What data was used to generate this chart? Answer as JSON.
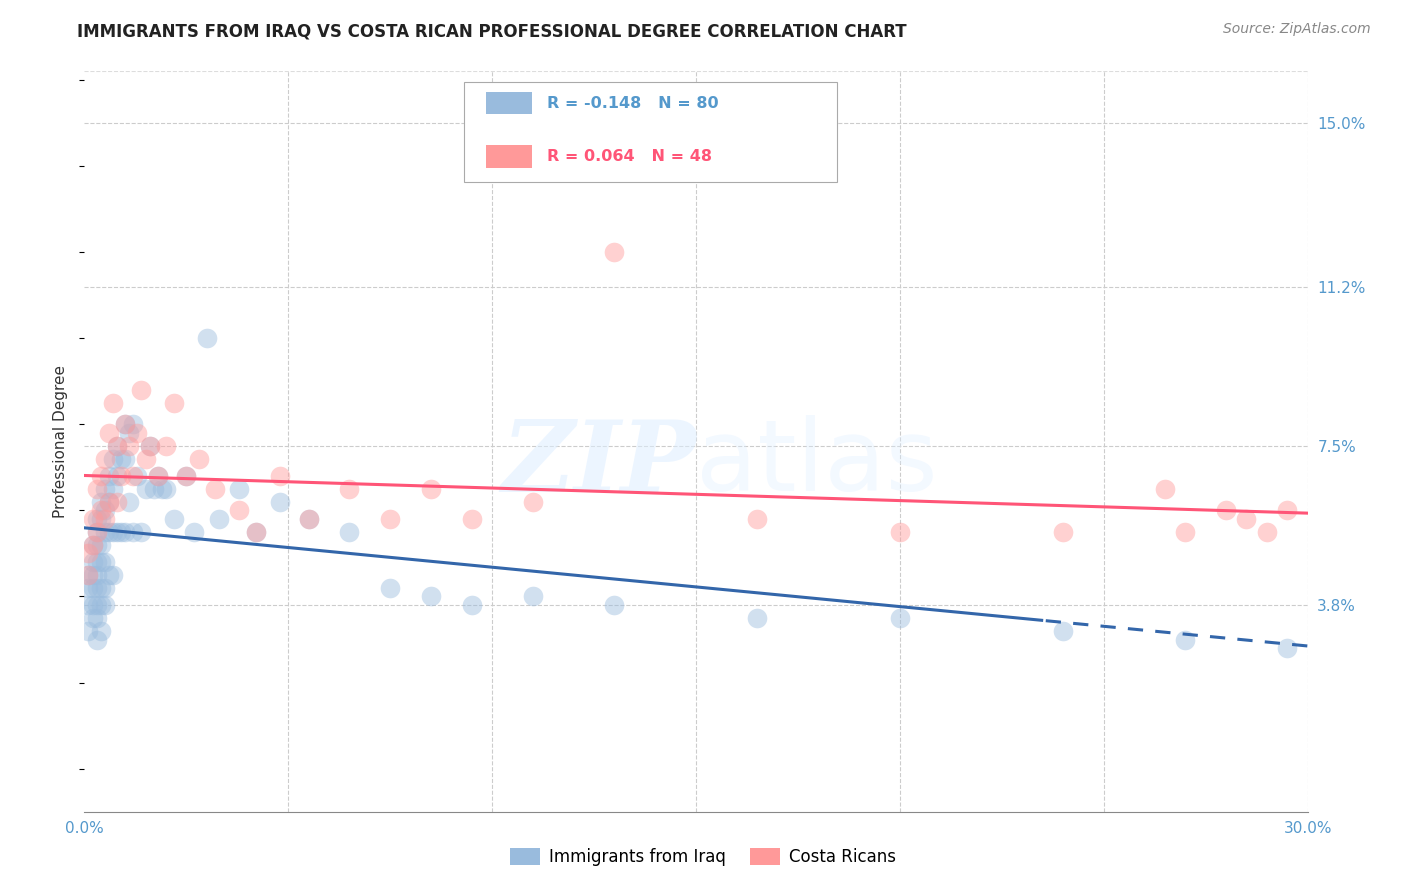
{
  "title": "IMMIGRANTS FROM IRAQ VS COSTA RICAN PROFESSIONAL DEGREE CORRELATION CHART",
  "source": "Source: ZipAtlas.com",
  "ylabel": "Professional Degree",
  "xlim": [
    0.0,
    0.3
  ],
  "ylim": [
    -0.01,
    0.162
  ],
  "xticks": [
    0.0,
    0.05,
    0.1,
    0.15,
    0.2,
    0.25,
    0.3
  ],
  "xticklabels": [
    "0.0%",
    "",
    "",
    "",
    "",
    "",
    "30.0%"
  ],
  "right_yticks": [
    0.038,
    0.075,
    0.112,
    0.15
  ],
  "right_yticklabels": [
    "3.8%",
    "7.5%",
    "11.2%",
    "15.0%"
  ],
  "blue_color": "#99BBDD",
  "pink_color": "#FF9999",
  "trend_blue_color": "#3366AA",
  "trend_pink_color": "#FF5577",
  "legend_R_blue": "-0.148",
  "legend_N_blue": "80",
  "legend_R_pink": "0.064",
  "legend_N_pink": "48",
  "series1_label": "Immigrants from Iraq",
  "series2_label": "Costa Ricans",
  "blue_x": [
    0.001,
    0.001,
    0.001,
    0.001,
    0.002,
    0.002,
    0.002,
    0.002,
    0.002,
    0.002,
    0.003,
    0.003,
    0.003,
    0.003,
    0.003,
    0.003,
    0.003,
    0.003,
    0.003,
    0.004,
    0.004,
    0.004,
    0.004,
    0.004,
    0.004,
    0.004,
    0.005,
    0.005,
    0.005,
    0.005,
    0.005,
    0.005,
    0.006,
    0.006,
    0.006,
    0.006,
    0.007,
    0.007,
    0.007,
    0.007,
    0.008,
    0.008,
    0.008,
    0.009,
    0.009,
    0.01,
    0.01,
    0.01,
    0.011,
    0.011,
    0.012,
    0.012,
    0.013,
    0.014,
    0.015,
    0.016,
    0.017,
    0.018,
    0.019,
    0.02,
    0.022,
    0.025,
    0.027,
    0.03,
    0.033,
    0.038,
    0.042,
    0.048,
    0.055,
    0.065,
    0.075,
    0.085,
    0.095,
    0.11,
    0.13,
    0.165,
    0.2,
    0.24,
    0.27,
    0.295
  ],
  "blue_y": [
    0.045,
    0.042,
    0.038,
    0.032,
    0.052,
    0.048,
    0.045,
    0.042,
    0.038,
    0.035,
    0.058,
    0.055,
    0.052,
    0.048,
    0.045,
    0.042,
    0.038,
    0.035,
    0.03,
    0.062,
    0.058,
    0.052,
    0.048,
    0.042,
    0.038,
    0.032,
    0.065,
    0.06,
    0.055,
    0.048,
    0.042,
    0.038,
    0.068,
    0.062,
    0.055,
    0.045,
    0.072,
    0.065,
    0.055,
    0.045,
    0.075,
    0.068,
    0.055,
    0.072,
    0.055,
    0.08,
    0.072,
    0.055,
    0.078,
    0.062,
    0.08,
    0.055,
    0.068,
    0.055,
    0.065,
    0.075,
    0.065,
    0.068,
    0.065,
    0.065,
    0.058,
    0.068,
    0.055,
    0.1,
    0.058,
    0.065,
    0.055,
    0.062,
    0.058,
    0.055,
    0.042,
    0.04,
    0.038,
    0.04,
    0.038,
    0.035,
    0.035,
    0.032,
    0.03,
    0.028
  ],
  "pink_x": [
    0.001,
    0.001,
    0.002,
    0.002,
    0.003,
    0.003,
    0.004,
    0.004,
    0.005,
    0.005,
    0.006,
    0.006,
    0.007,
    0.008,
    0.008,
    0.009,
    0.01,
    0.011,
    0.012,
    0.013,
    0.014,
    0.015,
    0.016,
    0.018,
    0.02,
    0.022,
    0.025,
    0.028,
    0.032,
    0.038,
    0.042,
    0.048,
    0.055,
    0.065,
    0.075,
    0.085,
    0.095,
    0.11,
    0.13,
    0.165,
    0.2,
    0.24,
    0.265,
    0.27,
    0.28,
    0.285,
    0.29,
    0.295
  ],
  "pink_y": [
    0.05,
    0.045,
    0.058,
    0.052,
    0.065,
    0.055,
    0.068,
    0.06,
    0.072,
    0.058,
    0.078,
    0.062,
    0.085,
    0.075,
    0.062,
    0.068,
    0.08,
    0.075,
    0.068,
    0.078,
    0.088,
    0.072,
    0.075,
    0.068,
    0.075,
    0.085,
    0.068,
    0.072,
    0.065,
    0.06,
    0.055,
    0.068,
    0.058,
    0.065,
    0.058,
    0.065,
    0.058,
    0.062,
    0.12,
    0.058,
    0.055,
    0.055,
    0.065,
    0.055,
    0.06,
    0.058,
    0.055,
    0.06
  ],
  "title_fontsize": 12,
  "source_fontsize": 10,
  "axis_label_fontsize": 11,
  "tick_fontsize": 11,
  "dot_size": 200,
  "dot_alpha": 0.45,
  "trend_lw": 2.2,
  "dashed_split": 0.235
}
